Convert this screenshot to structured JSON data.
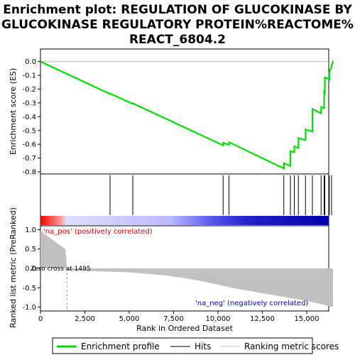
{
  "chart_data": {
    "type": "line",
    "title_lines": [
      "Enrichment plot: REGULATION OF GLUCOKINASE BY",
      "GLUCOKINASE REGULATORY PROTEIN%REACTOME%",
      "REACT_6804.2"
    ],
    "xlabel": "Rank in Ordered Dataset",
    "xlim": [
      0,
      16600
    ],
    "x_ticks": [
      0,
      2500,
      5000,
      7500,
      10000,
      12500,
      15000
    ],
    "x_tick_labels": [
      "0",
      "2,500",
      "5,000",
      "7,500",
      "10,000",
      "12,500",
      "15,000"
    ],
    "es_panel": {
      "ylabel": "Enrichment score (ES)",
      "ylim": [
        -0.8,
        0.05
      ],
      "y_ticks": [
        0.0,
        -0.1,
        -0.2,
        -0.3,
        -0.4,
        -0.5,
        -0.6,
        -0.7,
        -0.8
      ],
      "y_tick_labels": [
        "0.0",
        "-0.1",
        "-0.2",
        "-0.3",
        "-0.4",
        "-0.5",
        "-0.6",
        "-0.7",
        "-0.8"
      ],
      "line_color": "#00dd00",
      "series": [
        {
          "x": [
            0,
            3920,
            3925,
            5200,
            5205,
            10290,
            10295,
            10620,
            10625,
            13710,
            13715,
            14080,
            14085,
            14300,
            14305,
            14530,
            14535,
            14930,
            14935,
            15320,
            15325,
            15810,
            15815,
            15980,
            15985,
            16020,
            16025,
            16270,
            16275,
            16400,
            16405,
            16480
          ],
          "y": [
            0.0,
            -0.235,
            -0.232,
            -0.307,
            -0.303,
            -0.608,
            -0.59,
            -0.604,
            -0.585,
            -0.776,
            -0.737,
            -0.758,
            -0.65,
            -0.658,
            -0.615,
            -0.628,
            -0.555,
            -0.57,
            -0.493,
            -0.508,
            -0.345,
            -0.375,
            -0.33,
            -0.338,
            -0.22,
            -0.225,
            -0.115,
            -0.13,
            -0.075,
            -0.04,
            -0.03,
            0.005
          ]
        }
      ]
    },
    "hits_panel": {
      "hit_positions": [
        3920,
        5200,
        10290,
        10620,
        13710,
        14080,
        14300,
        14530,
        14930,
        15320,
        15810,
        15980,
        16020,
        16270,
        16400
      ]
    },
    "colorbar": {
      "pos_color": "#ff0000",
      "neg_color": "#0000aa",
      "mid_color": "#ffffff"
    },
    "metric_panel": {
      "ylabel": "Ranked list metric (PreRanked)",
      "ylim": [
        -1.1,
        1.1
      ],
      "y_ticks": [
        1.0,
        0.5,
        0.0,
        -0.5,
        -1.0
      ],
      "y_tick_labels": [
        "1.0",
        "0.5",
        "0.0",
        "-0.5",
        "-1.0"
      ],
      "fill_color": "#c0c0c0",
      "profile_x": [
        0,
        200,
        500,
        800,
        1100,
        1400,
        1495,
        1500,
        3500,
        5000,
        6000,
        7000,
        8000,
        9000,
        10000,
        11000,
        12000,
        13000,
        14000,
        15000,
        15800,
        16300,
        16480
      ],
      "profile_y": [
        1.0,
        0.9,
        0.8,
        0.7,
        0.6,
        0.5,
        0.0,
        -0.05,
        -0.08,
        -0.1,
        -0.14,
        -0.18,
        -0.24,
        -0.32,
        -0.42,
        -0.52,
        -0.6,
        -0.68,
        -0.76,
        -0.84,
        -0.92,
        -0.98,
        -1.0
      ],
      "zero_cross": 1495,
      "annot_pos": "'na_pos' (positively correlated)",
      "annot_neg": "'na_neg' (negatively correlated)",
      "annot_zero": "Zero cross at 1495"
    },
    "legend": {
      "placement": "bottom",
      "items": [
        {
          "label": "Enrichment profile",
          "color": "#00dd00",
          "style": "thick-line"
        },
        {
          "label": "Hits",
          "color": "#000000",
          "style": "line"
        },
        {
          "label": "Ranking metric scores",
          "color": "#c0c0c0",
          "style": "line"
        }
      ]
    }
  }
}
